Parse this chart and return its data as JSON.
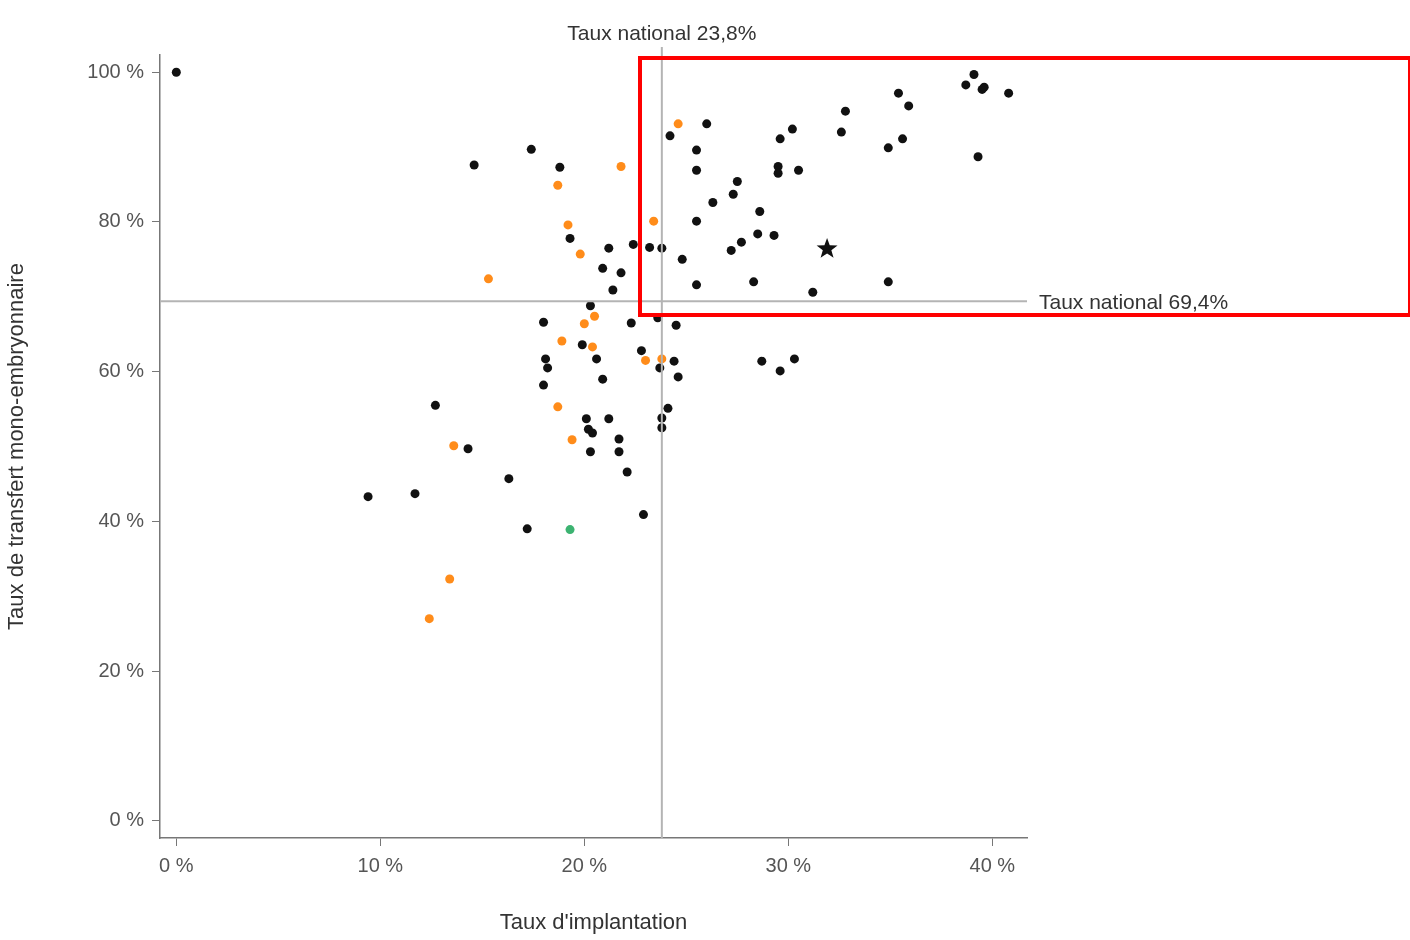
{
  "chart_data": {
    "type": "scatter",
    "xlabel": "Taux d'implantation",
    "ylabel": "Taux de transfert mono-embryonnaire",
    "xlim": [
      -0.8,
      41.7
    ],
    "ylim": [
      -2.3,
      102.3
    ],
    "xticks": [
      {
        "value": 0,
        "label": "0 %"
      },
      {
        "value": 10,
        "label": "10 %"
      },
      {
        "value": 20,
        "label": "20 %"
      },
      {
        "value": 30,
        "label": "30 %"
      },
      {
        "value": 40,
        "label": "40 %"
      }
    ],
    "yticks": [
      {
        "value": 0,
        "label": "0 %"
      },
      {
        "value": 20,
        "label": "20 %"
      },
      {
        "value": 40,
        "label": "40 %"
      },
      {
        "value": 60,
        "label": "60 %"
      },
      {
        "value": 80,
        "label": "80 %"
      },
      {
        "value": 100,
        "label": "100 %"
      }
    ],
    "grid": false,
    "legend": false,
    "marker": "circle",
    "ref_lines": [
      {
        "axis": "x",
        "value": 23.8,
        "label": "Taux national 23,8%",
        "color": "#b4b4b4"
      },
      {
        "axis": "y",
        "value": 69.4,
        "label": "Taux national 69,4%",
        "color": "#b4b4b4"
      }
    ],
    "series": [
      {
        "color": "#111111",
        "x": [
          0,
          14.6,
          17.4,
          18.8,
          19.3,
          21.2,
          22.4,
          23.2,
          23.8,
          24.8,
          20.9,
          21.8,
          21.4,
          25.5,
          20.3,
          18.0,
          22.3,
          23.6,
          24.5,
          19.9,
          20.6,
          18.1,
          18.2,
          22.8,
          23.7,
          24.4,
          20.9,
          24.6,
          18.0,
          12.7,
          24.1,
          20.1,
          21.2,
          23.8,
          20.2,
          20.4,
          23.8,
          14.3,
          20.3,
          21.7,
          21.7,
          22.1,
          16.3,
          9.4,
          11.7,
          22.9,
          17.2,
          39.1,
          38.7,
          39.5,
          39.6,
          40.8,
          35.4,
          35.9,
          32.8,
          32.6,
          30.2,
          29.6,
          26.0,
          24.2,
          25.5,
          25.5,
          29.5,
          29.5,
          30.5,
          34.9,
          35.6,
          39.3,
          27.5,
          27.3,
          26.3,
          25.5,
          28.6,
          28.5,
          29.3,
          27.7,
          27.2,
          28.3,
          31.2,
          34.9,
          28.7,
          29.6,
          30.3
        ],
        "values": [
          100,
          87.6,
          89.7,
          87.3,
          77.8,
          76.5,
          77.0,
          76.6,
          76.5,
          75.0,
          73.8,
          73.2,
          70.9,
          71.6,
          68.8,
          66.6,
          66.5,
          67.2,
          66.2,
          63.6,
          61.7,
          61.7,
          60.5,
          62.8,
          60.5,
          61.4,
          59.0,
          59.3,
          58.2,
          55.5,
          55.1,
          53.7,
          53.7,
          53.8,
          52.3,
          51.8,
          52.5,
          49.7,
          49.3,
          49.3,
          51.0,
          46.6,
          45.7,
          43.3,
          43.7,
          40.9,
          39.0,
          99.7,
          98.3,
          97.7,
          98.0,
          97.2,
          97.2,
          95.5,
          94.8,
          92.0,
          92.4,
          91.1,
          93.1,
          91.5,
          89.6,
          86.9,
          87.4,
          86.5,
          86.9,
          89.9,
          91.1,
          88.7,
          85.4,
          83.7,
          82.6,
          80.1,
          81.4,
          78.4,
          78.2,
          77.3,
          76.2,
          72.0,
          70.6,
          72.0,
          61.4,
          60.1,
          61.7
        ]
      },
      {
        "color": "#ff8c1a",
        "x": [
          21.8,
          18.7,
          19.2,
          23.4,
          19.8,
          15.3,
          20.5,
          20.0,
          18.9,
          20.4,
          23.0,
          23.8,
          18.7,
          19.4,
          13.6,
          13.4,
          12.4,
          24.6
        ],
        "values": [
          87.4,
          84.9,
          79.6,
          80.1,
          75.7,
          72.4,
          67.4,
          66.4,
          64.1,
          63.3,
          61.5,
          61.7,
          55.3,
          50.9,
          50.1,
          32.3,
          27.0,
          93.1
        ]
      },
      {
        "color": "#3cb371",
        "x": [
          19.3
        ],
        "values": [
          38.9
        ]
      },
      {
        "color": "#111111",
        "marker": "star",
        "x": [
          31.9
        ],
        "values": [
          76.4
        ]
      }
    ]
  }
}
